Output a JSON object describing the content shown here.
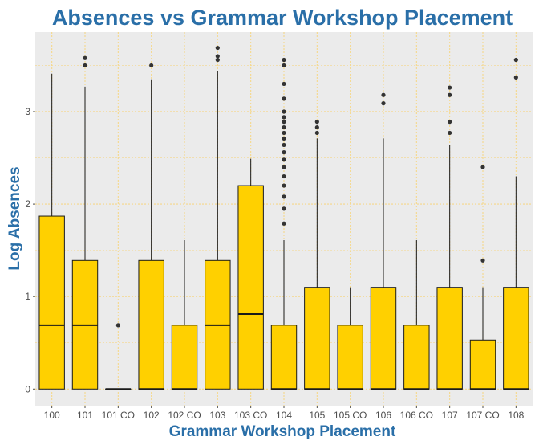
{
  "chart_data": {
    "type": "boxplot",
    "title": "Absences vs Grammar Workshop Placement",
    "xlabel": "Grammar Workshop Placement",
    "ylabel": "Log Absences",
    "ylim": [
      -0.18,
      3.86
    ],
    "yticks": [
      0,
      1,
      2,
      3
    ],
    "grid": true,
    "colors": {
      "panel": "#ebebeb",
      "grid": "#f5d78a",
      "box_fill": "#ffd000",
      "box_stroke": "#1a1a1a",
      "title": "#2a6fa8"
    },
    "categories": [
      "100",
      "101",
      "101 CO",
      "102",
      "102 CO",
      "103",
      "103 CO",
      "104",
      "105",
      "105 CO",
      "106",
      "106 CO",
      "107",
      "107 CO",
      "108"
    ],
    "boxes": [
      {
        "q1": 0,
        "median": 0.69,
        "q3": 1.87,
        "whisker_low": 0,
        "whisker_high": 3.41,
        "outliers": []
      },
      {
        "q1": 0,
        "median": 0.69,
        "q3": 1.39,
        "whisker_low": 0,
        "whisker_high": 3.27,
        "outliers": [
          3.5,
          3.58
        ]
      },
      {
        "q1": 0,
        "median": 0,
        "q3": 0,
        "whisker_low": 0,
        "whisker_high": 0,
        "outliers": [
          0.69
        ]
      },
      {
        "q1": 0,
        "median": 0,
        "q3": 1.39,
        "whisker_low": 0,
        "whisker_high": 3.35,
        "outliers": [
          3.5
        ]
      },
      {
        "q1": 0,
        "median": 0,
        "q3": 0.69,
        "whisker_low": 0,
        "whisker_high": 1.61,
        "outliers": []
      },
      {
        "q1": 0,
        "median": 0.69,
        "q3": 1.39,
        "whisker_low": 0,
        "whisker_high": 3.44,
        "outliers": [
          3.56,
          3.6,
          3.69
        ]
      },
      {
        "q1": 0,
        "median": 0.81,
        "q3": 2.2,
        "whisker_low": 0,
        "whisker_high": 2.49,
        "outliers": []
      },
      {
        "q1": 0,
        "median": 0,
        "q3": 0.69,
        "whisker_low": 0,
        "whisker_high": 1.61,
        "outliers": [
          1.79,
          1.95,
          2.08,
          2.2,
          2.3,
          2.4,
          2.48,
          2.56,
          2.64,
          2.71,
          2.77,
          2.83,
          2.89,
          2.94,
          3.0,
          3.14,
          3.3,
          3.5,
          3.56
        ]
      },
      {
        "q1": 0,
        "median": 0,
        "q3": 1.1,
        "whisker_low": 0,
        "whisker_high": 2.71,
        "outliers": [
          2.77,
          2.83,
          2.89
        ]
      },
      {
        "q1": 0,
        "median": 0,
        "q3": 0.69,
        "whisker_low": 0,
        "whisker_high": 1.1,
        "outliers": []
      },
      {
        "q1": 0,
        "median": 0,
        "q3": 1.1,
        "whisker_low": 0,
        "whisker_high": 2.71,
        "outliers": [
          3.09,
          3.18
        ]
      },
      {
        "q1": 0,
        "median": 0,
        "q3": 0.69,
        "whisker_low": 0,
        "whisker_high": 1.61,
        "outliers": []
      },
      {
        "q1": 0,
        "median": 0,
        "q3": 1.1,
        "whisker_low": 0,
        "whisker_high": 2.64,
        "outliers": [
          2.77,
          2.89,
          3.18,
          3.26
        ]
      },
      {
        "q1": 0,
        "median": 0,
        "q3": 0.53,
        "whisker_low": 0,
        "whisker_high": 1.1,
        "outliers": [
          1.39,
          2.4
        ]
      },
      {
        "q1": 0,
        "median": 0,
        "q3": 1.1,
        "whisker_low": 0,
        "whisker_high": 2.3,
        "outliers": [
          3.37,
          3.56
        ]
      }
    ]
  }
}
